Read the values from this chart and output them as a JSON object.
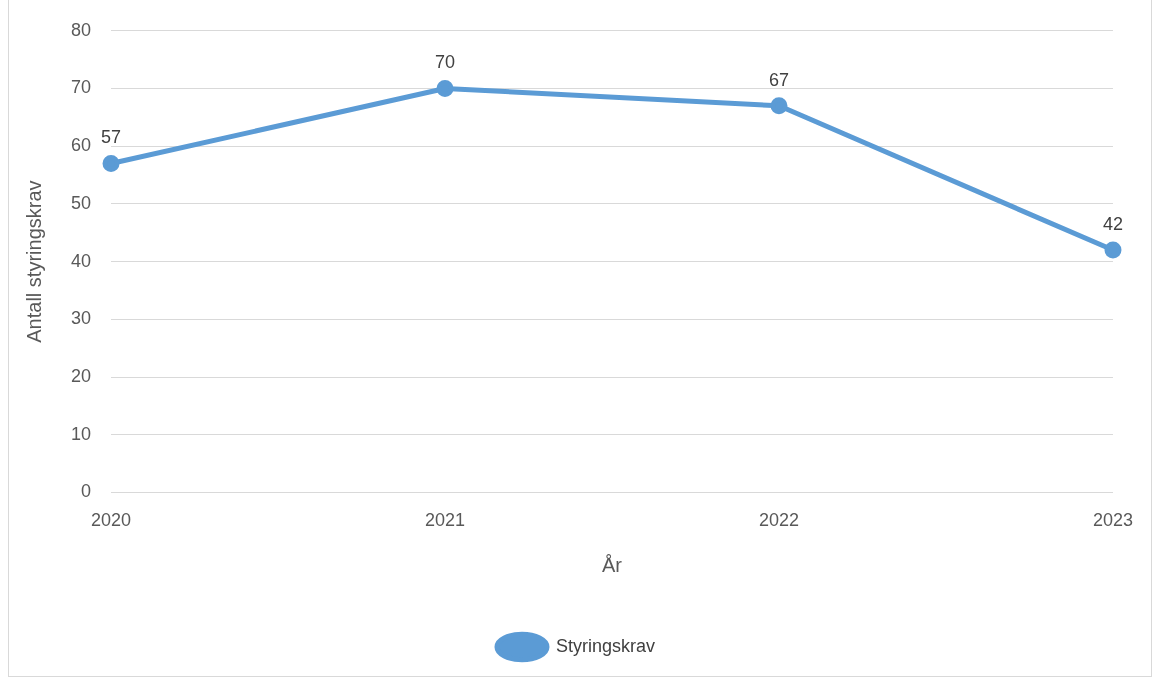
{
  "chart_data": {
    "type": "line",
    "xlabel": "År",
    "ylabel": "Antall styringskrav",
    "categories": [
      "2020",
      "2021",
      "2022",
      "2023"
    ],
    "series": [
      {
        "name": "Styringskrav",
        "color": "#5b9bd5",
        "values": [
          57,
          70,
          67,
          42
        ]
      }
    ],
    "ylim": [
      0,
      80
    ],
    "yticks": [
      0,
      10,
      20,
      30,
      40,
      50,
      60,
      70,
      80
    ],
    "grid": "y",
    "legend": "bottom",
    "marker": "circle",
    "line_style": "solid",
    "data_labels": true
  }
}
